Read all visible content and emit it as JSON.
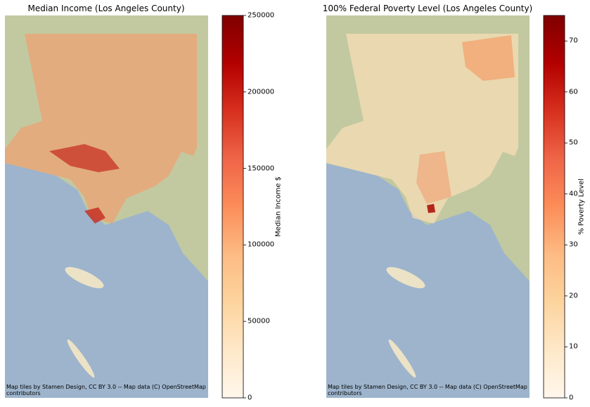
{
  "panels": [
    {
      "title": "Median Income (Los Angeles County)",
      "colorbar": {
        "label": "Median Income $",
        "lim": [
          0,
          250000
        ],
        "ticks": [
          0,
          50000,
          100000,
          150000,
          200000,
          250000
        ],
        "colors": [
          "#fff7ec",
          "#fee8c8",
          "#fdd49e",
          "#fdbb84",
          "#fc8d59",
          "#ef6548",
          "#d7301f",
          "#b30000",
          "#7f0000"
        ]
      },
      "attribution": "Map tiles by Stamen Design, CC BY 3.0 -- Map data (C) OpenStreetMap contributors"
    },
    {
      "title": "100% Federal Poverty Level (Los Angeles County)",
      "colorbar": {
        "label": "% Poverty Level",
        "lim": [
          0,
          75
        ],
        "ticks": [
          0,
          10,
          20,
          30,
          40,
          50,
          60,
          70
        ],
        "colors": [
          "#fff7ec",
          "#fee8c8",
          "#fdd49e",
          "#fdbb84",
          "#fc8d59",
          "#ef6548",
          "#d7301f",
          "#b30000",
          "#7f0000"
        ]
      },
      "attribution": "Map tiles by Stamen Design, CC BY 3.0 -- Map data (C) OpenStreetMap contributors"
    }
  ]
}
